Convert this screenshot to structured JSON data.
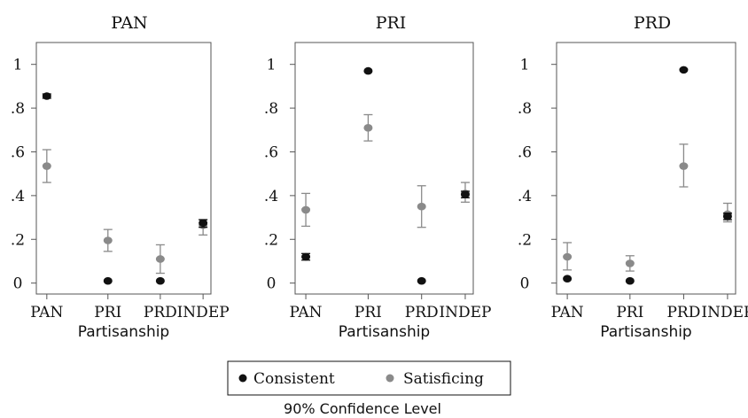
{
  "chart_data": [
    {
      "type": "scatter",
      "title": "PAN",
      "xlabel": "Partisanship",
      "categories": [
        "PAN",
        "PRI",
        "PRD",
        "INDEP"
      ],
      "ylim": [
        -0.05,
        1.1
      ],
      "yticks": [
        0,
        0.2,
        0.4,
        0.6,
        0.8,
        1
      ],
      "ytick_labels": [
        "0",
        ".2",
        ".4",
        ".6",
        ".8",
        "1"
      ],
      "series": [
        {
          "name": "Consistent",
          "color": "#111111",
          "values": [
            0.855,
            0.01,
            0.01,
            0.275
          ],
          "ci_low": [
            0.845,
            0.005,
            0.005,
            0.255
          ],
          "ci_high": [
            0.865,
            0.015,
            0.015,
            0.29
          ]
        },
        {
          "name": "Satisficing",
          "color": "#8a8a8a",
          "values": [
            0.535,
            0.195,
            0.11,
            0.265
          ],
          "ci_low": [
            0.46,
            0.145,
            0.045,
            0.22
          ],
          "ci_high": [
            0.61,
            0.245,
            0.175,
            0.29
          ]
        }
      ]
    },
    {
      "type": "scatter",
      "title": "PRI",
      "xlabel": "Partisanship",
      "categories": [
        "PAN",
        "PRI",
        "PRD",
        "INDEP"
      ],
      "ylim": [
        -0.05,
        1.1
      ],
      "yticks": [
        0,
        0.2,
        0.4,
        0.6,
        0.8,
        1
      ],
      "ytick_labels": [
        "0",
        ".2",
        ".4",
        ".6",
        ".8",
        "1"
      ],
      "series": [
        {
          "name": "Consistent",
          "color": "#111111",
          "values": [
            0.12,
            0.97,
            0.01,
            0.405
          ],
          "ci_low": [
            0.105,
            0.965,
            0.005,
            0.39
          ],
          "ci_high": [
            0.135,
            0.975,
            0.015,
            0.42
          ]
        },
        {
          "name": "Satisficing",
          "color": "#8a8a8a",
          "values": [
            0.335,
            0.71,
            0.35,
            0.41
          ],
          "ci_low": [
            0.26,
            0.65,
            0.255,
            0.37
          ],
          "ci_high": [
            0.41,
            0.77,
            0.445,
            0.46
          ]
        }
      ]
    },
    {
      "type": "scatter",
      "title": "PRD",
      "xlabel": "Partisanship",
      "categories": [
        "PAN",
        "PRI",
        "PRD",
        "INDEP"
      ],
      "ylim": [
        -0.05,
        1.1
      ],
      "yticks": [
        0,
        0.2,
        0.4,
        0.6,
        0.8,
        1
      ],
      "ytick_labels": [
        "0",
        ".2",
        ".4",
        ".6",
        ".8",
        "1"
      ],
      "series": [
        {
          "name": "Consistent",
          "color": "#111111",
          "values": [
            0.02,
            0.01,
            0.975,
            0.305
          ],
          "ci_low": [
            0.015,
            0.005,
            0.97,
            0.29
          ],
          "ci_high": [
            0.025,
            0.015,
            0.98,
            0.32
          ]
        },
        {
          "name": "Satisficing",
          "color": "#8a8a8a",
          "values": [
            0.12,
            0.09,
            0.535,
            0.315
          ],
          "ci_low": [
            0.06,
            0.055,
            0.44,
            0.28
          ],
          "ci_high": [
            0.185,
            0.125,
            0.635,
            0.365
          ]
        }
      ]
    }
  ],
  "legend": {
    "placement": "bottom-center",
    "items": [
      {
        "label": "Consistent",
        "color": "#111111"
      },
      {
        "label": "Satisficing",
        "color": "#8a8a8a"
      }
    ]
  },
  "note": "90% Confidence Level"
}
